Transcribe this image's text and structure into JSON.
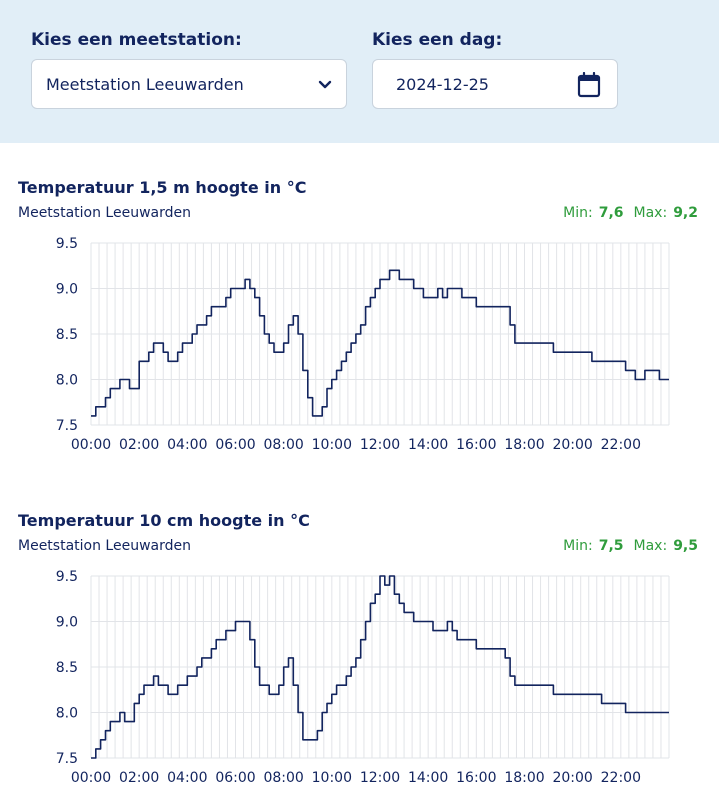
{
  "filters": {
    "station_label": "Kies een meetstation:",
    "station_value": "Meetstation Leeuwarden",
    "day_label": "Kies een dag:",
    "day_value": "2024-12-25"
  },
  "colors": {
    "line": "#12245e",
    "grid": "#e2e4e8",
    "minmax": "#2f9c3c",
    "panel": "#e1eef7"
  },
  "icons": {
    "dropdown": "chevron-down-icon",
    "calendar": "calendar-icon"
  },
  "charts": [
    {
      "title": "Temperatuur 1,5 m hoogte in °C",
      "station": "Meetstation Leeuwarden",
      "min_label": "Min:",
      "min_value": "7,6",
      "max_label": "Max:",
      "max_value": "9,2"
    },
    {
      "title": "Temperatuur 10 cm hoogte in °C",
      "station": "Meetstation Leeuwarden",
      "min_label": "Min:",
      "min_value": "7,5",
      "max_label": "Max:",
      "max_value": "9,5"
    }
  ],
  "chart_data": [
    {
      "type": "line",
      "title": "Temperatuur 1,5 m hoogte in °C",
      "ylim": [
        7.5,
        9.5
      ],
      "yticks": [
        "7.5",
        "8.0",
        "8.5",
        "9.0",
        "9.5"
      ],
      "xlim": [
        0,
        24
      ],
      "xticks": [
        "00:00",
        "02:00",
        "04:00",
        "06:00",
        "08:00",
        "10:00",
        "12:00",
        "14:00",
        "16:00",
        "18:00",
        "20:00",
        "22:00"
      ],
      "grid": true,
      "series": [
        {
          "x": [
            0,
            0.2,
            0.4,
            0.6,
            0.8,
            1.0,
            1.2,
            1.4,
            1.6,
            1.8,
            2.0,
            2.2,
            2.4,
            2.6,
            2.8,
            3.0,
            3.2,
            3.4,
            3.6,
            3.8,
            4.0,
            4.2,
            4.4,
            4.6,
            4.8,
            5.0,
            5.2,
            5.4,
            5.6,
            5.8,
            6.0,
            6.2,
            6.4,
            6.6,
            6.8,
            7.0,
            7.2,
            7.4,
            7.6,
            7.8,
            8.0,
            8.2,
            8.4,
            8.6,
            8.8,
            9.0,
            9.2,
            9.4,
            9.6,
            9.8,
            10.0,
            10.2,
            10.4,
            10.6,
            10.8,
            11.0,
            11.2,
            11.4,
            11.6,
            11.8,
            12.0,
            12.2,
            12.4,
            12.6,
            12.8,
            13.0,
            13.2,
            13.4,
            13.6,
            13.8,
            14.0,
            14.2,
            14.4,
            14.6,
            14.8,
            15.0,
            15.2,
            15.4,
            15.6,
            15.8,
            16.0,
            16.2,
            16.4,
            16.6,
            16.8,
            17.0,
            17.2,
            17.4,
            17.6,
            17.8,
            18.0,
            18.4,
            18.8,
            19.2,
            19.6,
            20.0,
            20.4,
            20.8,
            21.2,
            21.6,
            22.0,
            22.2,
            22.4,
            22.6,
            22.8,
            23.0,
            23.2,
            23.4,
            23.6,
            23.8,
            24.0
          ],
          "y": [
            7.6,
            7.7,
            7.7,
            7.8,
            7.9,
            7.9,
            8.0,
            8.0,
            7.9,
            7.9,
            8.2,
            8.2,
            8.3,
            8.4,
            8.4,
            8.3,
            8.2,
            8.2,
            8.3,
            8.4,
            8.4,
            8.5,
            8.6,
            8.6,
            8.7,
            8.8,
            8.8,
            8.8,
            8.9,
            9.0,
            9.0,
            9.0,
            9.1,
            9.0,
            8.9,
            8.7,
            8.5,
            8.4,
            8.3,
            8.3,
            8.4,
            8.6,
            8.7,
            8.5,
            8.1,
            7.8,
            7.6,
            7.6,
            7.7,
            7.9,
            8.0,
            8.1,
            8.2,
            8.3,
            8.4,
            8.5,
            8.6,
            8.8,
            8.9,
            9.0,
            9.1,
            9.1,
            9.2,
            9.2,
            9.1,
            9.1,
            9.1,
            9.0,
            9.0,
            8.9,
            8.9,
            8.9,
            9.0,
            8.9,
            9.0,
            9.0,
            9.0,
            8.9,
            8.9,
            8.9,
            8.8,
            8.8,
            8.8,
            8.8,
            8.8,
            8.8,
            8.8,
            8.6,
            8.4,
            8.4,
            8.4,
            8.4,
            8.4,
            8.3,
            8.3,
            8.3,
            8.3,
            8.2,
            8.2,
            8.2,
            8.2,
            8.1,
            8.1,
            8.0,
            8.0,
            8.1,
            8.1,
            8.1,
            8.0,
            8.0,
            8.0
          ]
        }
      ]
    },
    {
      "type": "line",
      "title": "Temperatuur 10 cm hoogte in °C",
      "ylim": [
        7.5,
        9.5
      ],
      "yticks": [
        "7.5",
        "8.0",
        "8.5",
        "9.0",
        "9.5"
      ],
      "xlim": [
        0,
        24
      ],
      "xticks": [
        "00:00",
        "02:00",
        "04:00",
        "06:00",
        "08:00",
        "10:00",
        "12:00",
        "14:00",
        "16:00",
        "18:00",
        "20:00",
        "22:00"
      ],
      "grid": true,
      "series": [
        {
          "x": [
            0,
            0.2,
            0.4,
            0.6,
            0.8,
            1.0,
            1.2,
            1.4,
            1.6,
            1.8,
            2.0,
            2.2,
            2.4,
            2.6,
            2.8,
            3.0,
            3.2,
            3.4,
            3.6,
            3.8,
            4.0,
            4.2,
            4.4,
            4.6,
            4.8,
            5.0,
            5.2,
            5.4,
            5.6,
            5.8,
            6.0,
            6.2,
            6.4,
            6.6,
            6.8,
            7.0,
            7.2,
            7.4,
            7.6,
            7.8,
            8.0,
            8.2,
            8.4,
            8.6,
            8.8,
            9.0,
            9.2,
            9.4,
            9.6,
            9.8,
            10.0,
            10.2,
            10.4,
            10.6,
            10.8,
            11.0,
            11.2,
            11.4,
            11.6,
            11.8,
            12.0,
            12.2,
            12.4,
            12.6,
            12.8,
            13.0,
            13.2,
            13.4,
            13.6,
            13.8,
            14.0,
            14.2,
            14.4,
            14.6,
            14.8,
            15.0,
            15.2,
            15.4,
            15.6,
            15.8,
            16.0,
            16.2,
            16.4,
            16.6,
            16.8,
            17.0,
            17.2,
            17.4,
            17.6,
            17.8,
            18.0,
            18.4,
            18.8,
            19.2,
            19.6,
            20.0,
            20.4,
            20.8,
            21.2,
            21.6,
            22.0,
            22.2,
            22.4,
            22.6,
            22.8,
            23.0,
            23.2,
            23.4,
            23.6,
            23.8,
            24.0
          ],
          "y": [
            7.5,
            7.6,
            7.7,
            7.8,
            7.9,
            7.9,
            8.0,
            7.9,
            7.9,
            8.1,
            8.2,
            8.3,
            8.3,
            8.4,
            8.3,
            8.3,
            8.2,
            8.2,
            8.3,
            8.3,
            8.4,
            8.4,
            8.5,
            8.6,
            8.6,
            8.7,
            8.8,
            8.8,
            8.9,
            8.9,
            9.0,
            9.0,
            9.0,
            8.8,
            8.5,
            8.3,
            8.3,
            8.2,
            8.2,
            8.3,
            8.5,
            8.6,
            8.3,
            8.0,
            7.7,
            7.7,
            7.7,
            7.8,
            8.0,
            8.1,
            8.2,
            8.3,
            8.3,
            8.4,
            8.5,
            8.6,
            8.8,
            9.0,
            9.2,
            9.3,
            9.5,
            9.4,
            9.5,
            9.3,
            9.2,
            9.1,
            9.1,
            9.0,
            9.0,
            9.0,
            9.0,
            8.9,
            8.9,
            8.9,
            9.0,
            8.9,
            8.8,
            8.8,
            8.8,
            8.8,
            8.7,
            8.7,
            8.7,
            8.7,
            8.7,
            8.7,
            8.6,
            8.4,
            8.3,
            8.3,
            8.3,
            8.3,
            8.3,
            8.2,
            8.2,
            8.2,
            8.2,
            8.2,
            8.1,
            8.1,
            8.1,
            8.0,
            8.0,
            8.0,
            8.0,
            8.0,
            8.0,
            8.0,
            8.0,
            8.0,
            8.0
          ]
        }
      ]
    }
  ]
}
